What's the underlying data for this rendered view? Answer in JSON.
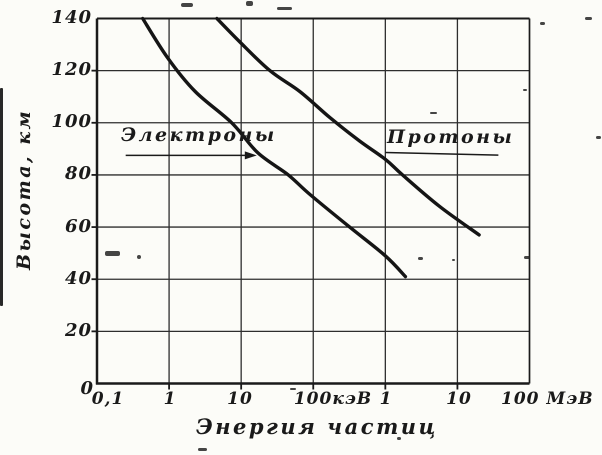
{
  "figure": {
    "paper_color": "#fcfcf8",
    "ink_color": "#1a1a1a",
    "kind": "scanned book figure, black and white"
  },
  "chart_data": {
    "type": "line",
    "title": "",
    "xlabel": "Энергия частиц",
    "ylabel": "Высота, км",
    "x_scale": "log",
    "x_unit_note": "energy axis runs 0,1 кэВ to 100 МэВ (6 decades)",
    "x_range_keV": [
      0.1,
      100000
    ],
    "x_tick_energies_keV": [
      0.1,
      1,
      10,
      100,
      1000,
      10000,
      100000
    ],
    "x_tick_labels": [
      "0,1",
      "1",
      "10",
      "100кэВ",
      "1",
      "10",
      "100 МэВ"
    ],
    "ylim": [
      0,
      140
    ],
    "y_ticks": [
      140,
      120,
      100,
      80,
      60,
      40,
      20,
      0
    ],
    "y_tick_labels": [
      "140",
      "120",
      "100",
      "80",
      "60",
      "40",
      "20",
      "0"
    ],
    "grid": true,
    "legend_position": "in-plot text labels with arrow/underline",
    "series": [
      {
        "name": "Электроны",
        "points_keV_km": [
          [
            0.43,
            140
          ],
          [
            0.95,
            125
          ],
          [
            2.3,
            112
          ],
          [
            7.4,
            100
          ],
          [
            17,
            88.5
          ],
          [
            45,
            80
          ],
          [
            90,
            72.5
          ],
          [
            320,
            60
          ],
          [
            1000,
            49
          ],
          [
            1900,
            41
          ]
        ]
      },
      {
        "name": "Протоны",
        "points_keV_km": [
          [
            4.6,
            140
          ],
          [
            9.6,
            131
          ],
          [
            25,
            120
          ],
          [
            65,
            112
          ],
          [
            170,
            102
          ],
          [
            440,
            93
          ],
          [
            1000,
            86
          ],
          [
            1730,
            80
          ],
          [
            5600,
            68
          ],
          [
            20000,
            57
          ]
        ]
      }
    ],
    "annotations": [
      {
        "kind": "arrow-right",
        "series": "Электроны",
        "from_keV": 0.25,
        "to_keV": 16.5,
        "at_km": 87.5
      },
      {
        "kind": "underline",
        "series": "Протоны",
        "from_keV": 1000,
        "to_keV": 37000,
        "at_km": 88.6,
        "at_km_end": 87.6
      }
    ]
  },
  "labels": {
    "y_axis_title": "Высота, км",
    "x_axis_title": "Энергия частиц",
    "series_electrons": "Электроны",
    "series_protons": "Протоны"
  }
}
